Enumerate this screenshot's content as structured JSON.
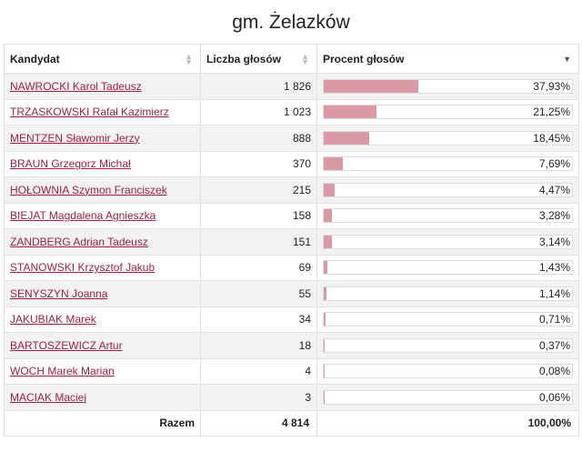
{
  "page": {
    "title": "gm. Żelazków"
  },
  "table": {
    "columns": [
      {
        "label": "Kandydat",
        "sort": "none"
      },
      {
        "label": "Liczba głosów",
        "sort": "none"
      },
      {
        "label": "Procent głosów",
        "sort": "desc"
      }
    ],
    "rows": [
      {
        "name": "NAWROCKI Karol Tadeusz",
        "votes": "1 826",
        "percent": "37,93%",
        "share": 37.93
      },
      {
        "name": "TRZASKOWSKI Rafał Kazimierz",
        "votes": "1 023",
        "percent": "21,25%",
        "share": 21.25
      },
      {
        "name": "MENTZEN Sławomir Jerzy",
        "votes": "888",
        "percent": "18,45%",
        "share": 18.45
      },
      {
        "name": "BRAUN Grzegorz Michał",
        "votes": "370",
        "percent": "7,69%",
        "share": 7.69
      },
      {
        "name": "HOŁOWNIA Szymon Franciszek",
        "votes": "215",
        "percent": "4,47%",
        "share": 4.47
      },
      {
        "name": "BIEJAT Magdalena Agnieszka",
        "votes": "158",
        "percent": "3,28%",
        "share": 3.28
      },
      {
        "name": "ZANDBERG Adrian Tadeusz",
        "votes": "151",
        "percent": "3,14%",
        "share": 3.14
      },
      {
        "name": "STANOWSKI Krzysztof Jakub",
        "votes": "69",
        "percent": "1,43%",
        "share": 1.43
      },
      {
        "name": "SENYSZYN Joanna",
        "votes": "55",
        "percent": "1,14%",
        "share": 1.14
      },
      {
        "name": "JAKUBIAK Marek",
        "votes": "34",
        "percent": "0,71%",
        "share": 0.71
      },
      {
        "name": "BARTOSZEWICZ Artur",
        "votes": "18",
        "percent": "0,37%",
        "share": 0.37
      },
      {
        "name": "WOCH Marek Marian",
        "votes": "4",
        "percent": "0,08%",
        "share": 0.08
      },
      {
        "name": "MACIAK Maciej",
        "votes": "3",
        "percent": "0,06%",
        "share": 0.06
      }
    ],
    "footer": {
      "label": "Razem",
      "votes": "4 814",
      "percent": "100,00%"
    }
  },
  "colors": {
    "link": "#a02040",
    "bar": "#d99aa6",
    "row_alt": "#f2f2f2"
  },
  "icons": {
    "sort": "sort-arrows-icon"
  }
}
